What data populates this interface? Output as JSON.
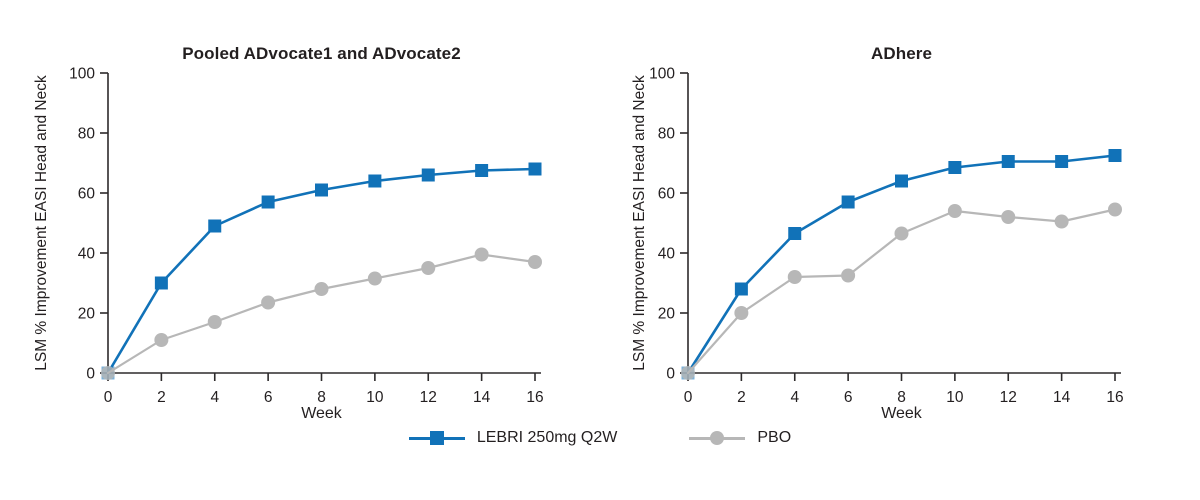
{
  "page": {
    "background": "#ffffff"
  },
  "colors": {
    "lebri_blue": "#1172b8",
    "pbo_gray": "#b7b7b7",
    "text": "#231f20",
    "axis": "#2d2a2b"
  },
  "legend": {
    "items": [
      {
        "label": "LEBRI 250mg Q2W",
        "marker": "square",
        "color": "#1172b8"
      },
      {
        "label": "PBO",
        "marker": "circle",
        "color": "#b7b7b7"
      }
    ]
  },
  "chart_data": [
    {
      "type": "line",
      "title": "Pooled ADvocate1 and ADvocate2",
      "xlabel": "Week",
      "ylabel": "LSM % Improvement EASI Head and Neck",
      "x": [
        0,
        2,
        4,
        6,
        8,
        10,
        12,
        14,
        16
      ],
      "x_ticks": [
        0,
        2,
        4,
        6,
        8,
        10,
        12,
        14,
        16
      ],
      "y_ticks": [
        0,
        20,
        40,
        60,
        80,
        100
      ],
      "xlim": [
        0,
        16
      ],
      "ylim": [
        0,
        100
      ],
      "grid": false,
      "legend_position": "bottom-center",
      "series": [
        {
          "name": "LEBRI 250mg Q2W",
          "marker": "square",
          "color": "#1172b8",
          "values": [
            0,
            30,
            49,
            57,
            61,
            64,
            66,
            67.5,
            68
          ]
        },
        {
          "name": "PBO",
          "marker": "circle",
          "color": "#b7b7b7",
          "values": [
            0,
            11,
            17,
            23.5,
            28,
            31.5,
            35,
            39.5,
            37
          ]
        }
      ]
    },
    {
      "type": "line",
      "title": "ADhere",
      "xlabel": "Week",
      "ylabel": "LSM % Improvement EASI Head and Neck",
      "x": [
        0,
        2,
        4,
        6,
        8,
        10,
        12,
        14,
        16
      ],
      "x_ticks": [
        0,
        2,
        4,
        6,
        8,
        10,
        12,
        14,
        16
      ],
      "y_ticks": [
        0,
        20,
        40,
        60,
        80,
        100
      ],
      "xlim": [
        0,
        16
      ],
      "ylim": [
        0,
        100
      ],
      "grid": false,
      "legend_position": "bottom-center",
      "series": [
        {
          "name": "LEBRI 250mg Q2W",
          "marker": "square",
          "color": "#1172b8",
          "values": [
            0,
            28,
            46.5,
            57,
            64,
            68.5,
            70.5,
            70.5,
            72.5
          ]
        },
        {
          "name": "PBO",
          "marker": "circle",
          "color": "#b7b7b7",
          "values": [
            0,
            20,
            32,
            32.5,
            46.5,
            54,
            52,
            50.5,
            54.5
          ]
        }
      ]
    }
  ]
}
